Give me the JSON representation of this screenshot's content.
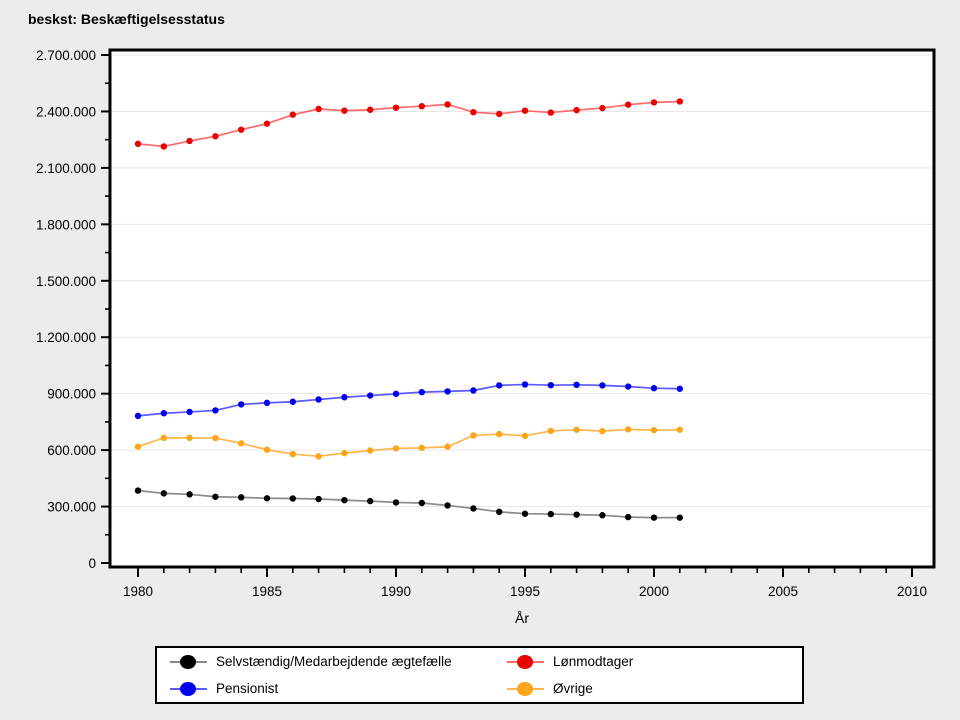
{
  "window": {
    "title": "beskst: Beskæftigelsesstatus"
  },
  "chart_data": {
    "type": "line",
    "title": "beskst: Beskæftigelsesstatus",
    "xlabel": "År",
    "ylabel": "",
    "x_years": [
      1980,
      1981,
      1982,
      1983,
      1984,
      1985,
      1986,
      1987,
      1988,
      1989,
      1990,
      1991,
      1992,
      1993,
      1994,
      1995,
      1996,
      1997,
      1998,
      1999,
      2000,
      2001
    ],
    "series": [
      {
        "name": "Selvstændig/Medarbejdende ægtefælle",
        "marker_color": "#000000",
        "line_color": "#8a8a8a",
        "values": [
          385000,
          370000,
          365000,
          352000,
          349000,
          344000,
          343000,
          340000,
          334000,
          329000,
          322000,
          319000,
          306000,
          290000,
          272000,
          262000,
          260000,
          257000,
          254000,
          244000,
          241000,
          241000
        ]
      },
      {
        "name": "Lønmodtager",
        "marker_color": "#ee0000",
        "line_color": "#ff6a6a",
        "values": [
          2228000,
          2214000,
          2243000,
          2268000,
          2303000,
          2335000,
          2383000,
          2413000,
          2404000,
          2409000,
          2420000,
          2428000,
          2437000,
          2396000,
          2387000,
          2404000,
          2394000,
          2407000,
          2418000,
          2436000,
          2448000,
          2453000
        ]
      },
      {
        "name": "Pensionist",
        "marker_color": "#0000ee",
        "line_color": "#5a5aff",
        "values": [
          782000,
          796000,
          803000,
          811000,
          843000,
          851000,
          857000,
          869000,
          881000,
          890000,
          899000,
          908000,
          912000,
          917000,
          944000,
          949000,
          945000,
          947000,
          944000,
          938000,
          929000,
          926000
        ]
      },
      {
        "name": "Øvrige",
        "marker_color": "#ffa519",
        "line_color": "#ffb54d",
        "values": [
          618000,
          665000,
          665000,
          664000,
          636000,
          602000,
          579000,
          567000,
          584000,
          598000,
          609000,
          612000,
          618000,
          678000,
          685000,
          676000,
          702000,
          708000,
          701000,
          710000,
          706000,
          708000
        ]
      }
    ],
    "xlim": [
      1978.9,
      2010.9
    ],
    "ylim": [
      0,
      2700000
    ],
    "x_major_ticks": [
      1980,
      1985,
      1990,
      1995,
      2000,
      2005,
      2010
    ],
    "x_tick_labels": [
      "1980",
      "1985",
      "1990",
      "1995",
      "2000",
      "2005",
      "2010"
    ],
    "x_minor_step": 1,
    "y_major_ticks": [
      0,
      300000,
      600000,
      900000,
      1200000,
      1500000,
      1800000,
      2100000,
      2400000,
      2700000
    ],
    "y_tick_labels": [
      "0",
      "300.000",
      "600.000",
      "900.000",
      "1.200.000",
      "1.500.000",
      "1.800.000",
      "2.100.000",
      "2.400.000",
      "2.700.000"
    ],
    "y_minor_step": 150000,
    "grid": "horizontal-major",
    "legend_position": "bottom"
  }
}
